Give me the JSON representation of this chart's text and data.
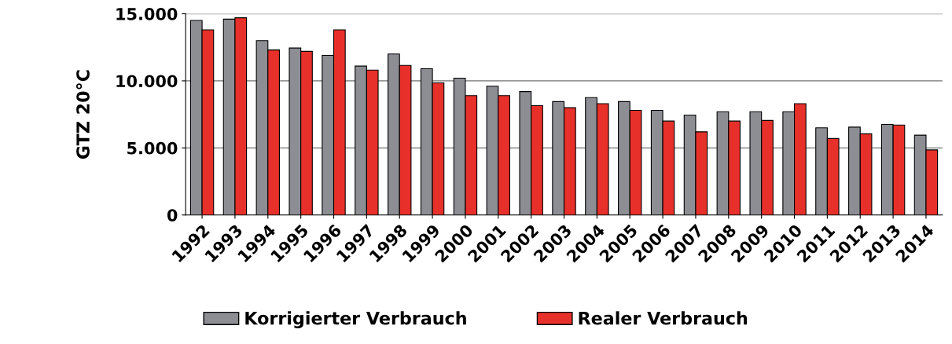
{
  "chart_data": {
    "type": "bar",
    "ylabel": "GTZ 20°C",
    "categories": [
      "1992",
      "1993",
      "1994",
      "1995",
      "1996",
      "1997",
      "1998",
      "1999",
      "2000",
      "2001",
      "2002",
      "2003",
      "2004",
      "2005",
      "2006",
      "2007",
      "2008",
      "2009",
      "2010",
      "2011",
      "2012",
      "2013",
      "2014"
    ],
    "series": [
      {
        "name": "Korrigierter Verbrauch",
        "color": "#8c8e94",
        "values": [
          14500,
          14600,
          13000,
          12450,
          11900,
          11100,
          12000,
          10900,
          10200,
          9600,
          9200,
          8450,
          8750,
          8450,
          7800,
          7450,
          7700,
          7700,
          7700,
          6500,
          6550,
          6750,
          5950
        ]
      },
      {
        "name": "Realer Verbrauch",
        "color": "#e8302a",
        "values": [
          13800,
          14700,
          12300,
          12200,
          13800,
          10800,
          11150,
          9850,
          8900,
          8900,
          8150,
          8000,
          8300,
          7800,
          7000,
          6200,
          7000,
          7050,
          8300,
          5700,
          6050,
          6700,
          4850
        ]
      }
    ],
    "ylim": [
      0,
      15000
    ],
    "yticks": [
      {
        "value": 0,
        "label": "0"
      },
      {
        "value": 5000,
        "label": "5.000"
      },
      {
        "value": 10000,
        "label": "10.000"
      },
      {
        "value": 15000,
        "label": "15.000"
      }
    ],
    "grid": "y",
    "legend": "bottom"
  }
}
